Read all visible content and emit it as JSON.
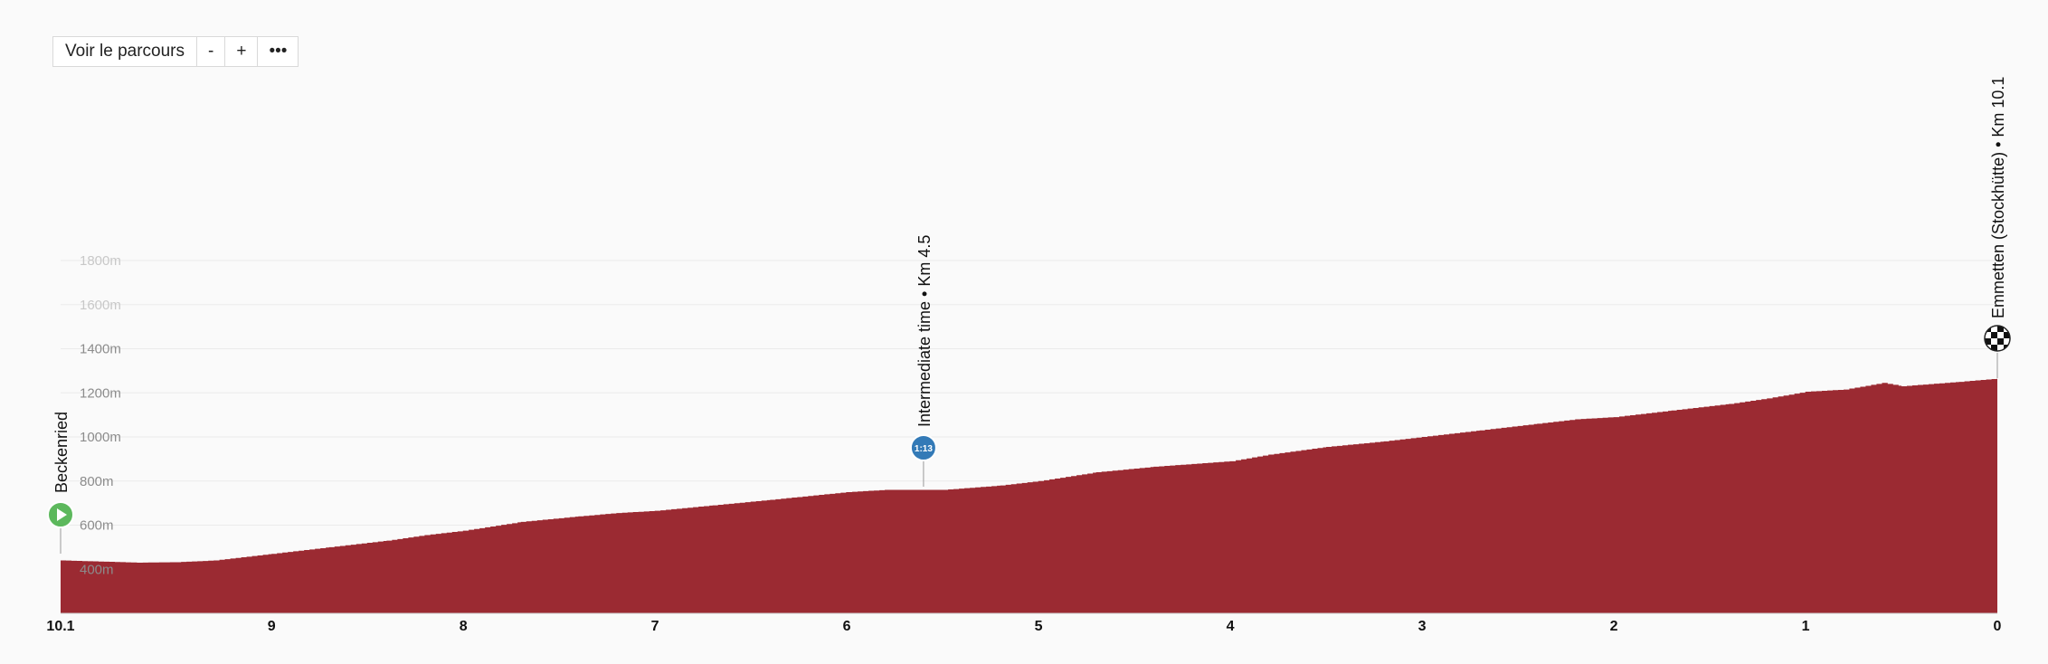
{
  "toolbar": {
    "view_route": "Voir le parcours",
    "zoom_out": "-",
    "zoom_in": "+",
    "more": "•••"
  },
  "colors": {
    "profile_fill": "#9b2a32",
    "start_marker": "#5cb85c",
    "intermediate_marker": "#337ab7",
    "finish_marker": "#111111"
  },
  "markers": {
    "start": {
      "label": "Beckenried",
      "icon": "play-icon"
    },
    "intermediate": {
      "label": "Intermediate time • Km 4.5",
      "badge": "1:13"
    },
    "finish": {
      "label": "Emmetten (Stockhütte) • Km 10.1",
      "icon": "checkered-flag-icon"
    }
  },
  "chart_data": {
    "type": "area",
    "title": "",
    "xlabel": "",
    "ylabel": "",
    "x_reversed": true,
    "xlim": [
      10.1,
      0
    ],
    "ylim": [
      200,
      1800
    ],
    "x_ticks": [
      "10.1",
      "9",
      "8",
      "7",
      "6",
      "5",
      "4",
      "3",
      "2",
      "1",
      "0"
    ],
    "y_ticks": [
      "400m",
      "600m",
      "800m",
      "1000m",
      "1200m",
      "1400m",
      "1600m",
      "1800m"
    ],
    "series": [
      {
        "x": [
          10.1,
          9.7,
          9.5,
          9.3,
          9.0,
          8.7,
          8.4,
          8.2,
          8.0,
          7.7,
          7.4,
          7.2,
          7.0,
          6.7,
          6.4,
          6.0,
          5.8,
          5.5,
          5.2,
          5.0,
          4.7,
          4.4,
          4.0,
          3.8,
          3.5,
          3.2,
          3.0,
          2.7,
          2.4,
          2.2,
          2.0,
          1.7,
          1.4,
          1.2,
          1.0,
          0.8,
          0.6,
          0.5,
          0.2,
          0.0
        ],
        "y": [
          440,
          430,
          432,
          440,
          470,
          500,
          530,
          555,
          575,
          615,
          640,
          655,
          665,
          690,
          715,
          750,
          760,
          760,
          780,
          800,
          840,
          865,
          890,
          920,
          955,
          980,
          1000,
          1030,
          1060,
          1080,
          1090,
          1120,
          1150,
          1175,
          1205,
          1215,
          1245,
          1230,
          1250,
          1265
        ]
      }
    ],
    "grid": true,
    "annotations": [
      {
        "x": 10.1,
        "text": "Beckenried"
      },
      {
        "x": 5.6,
        "text": "Intermediate time • Km 4.5"
      },
      {
        "x": 0.0,
        "text": "Emmetten (Stockhütte) • Km 10.1"
      }
    ]
  }
}
